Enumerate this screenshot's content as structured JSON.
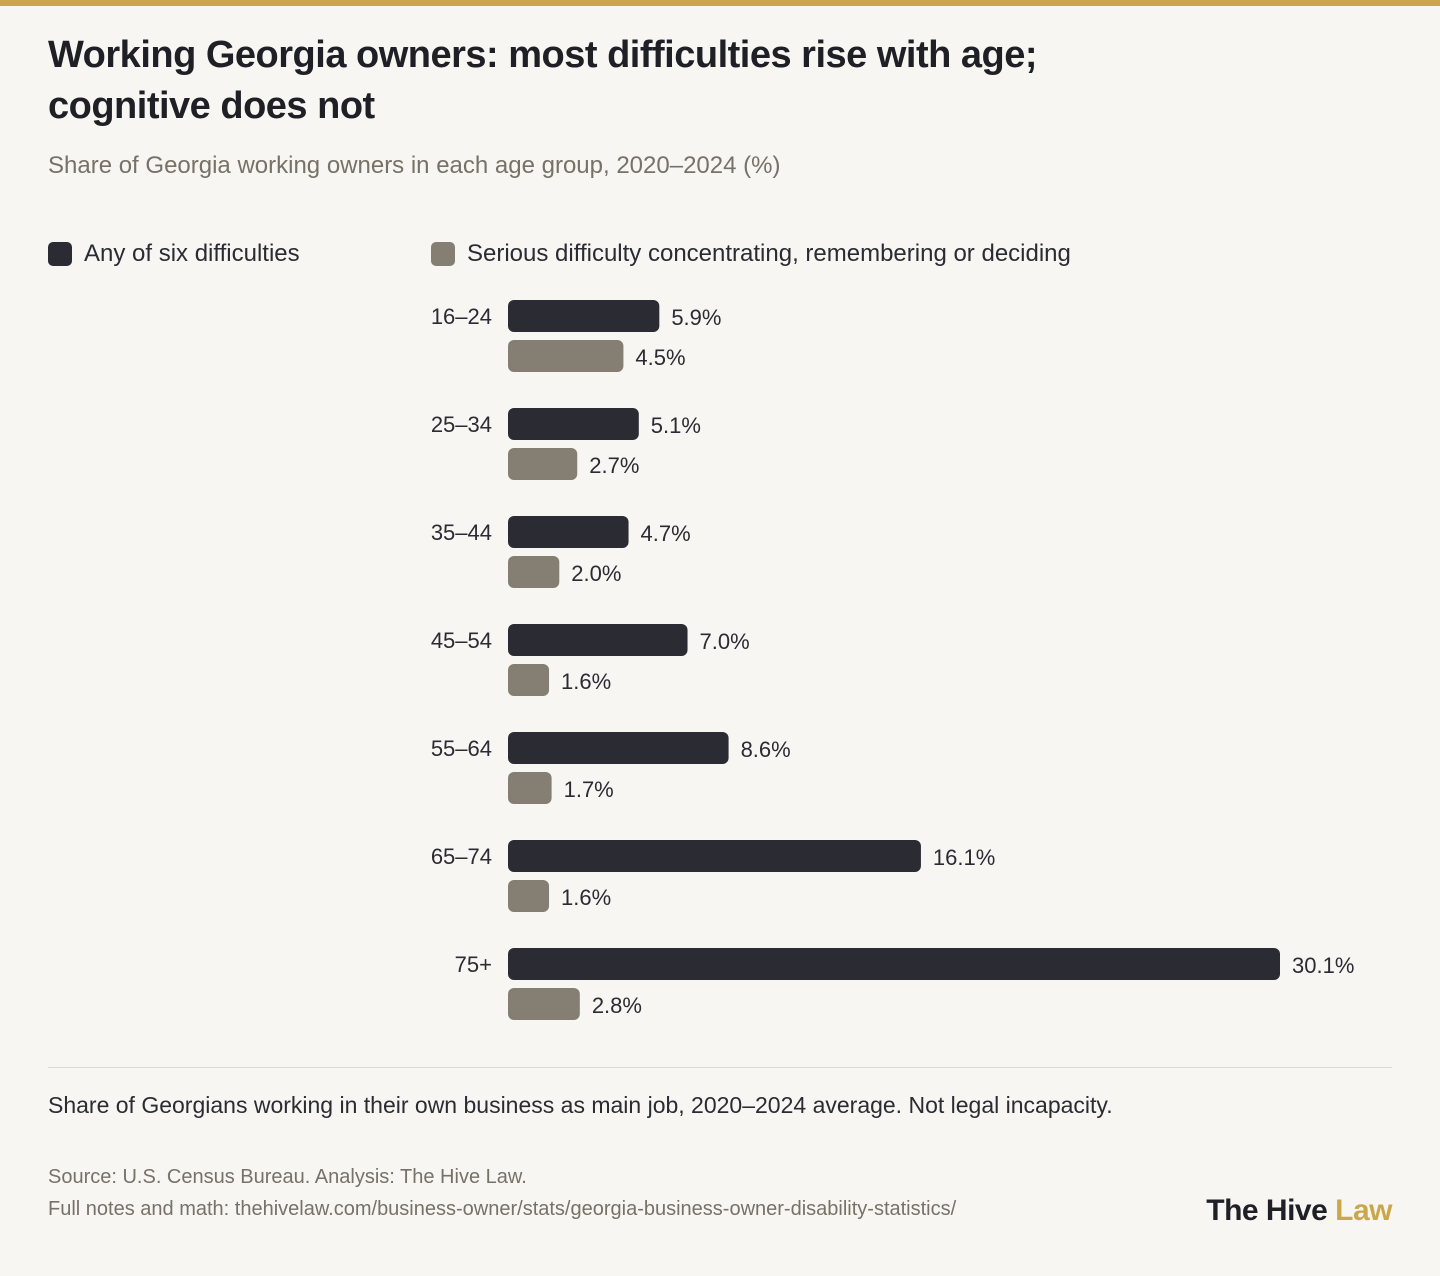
{
  "colors": {
    "accent": "#c9a84c",
    "series_dark": "#2b2b33",
    "series_taupe": "#857e72",
    "background": "#f7f6f2"
  },
  "title": "Working Georgia owners: most difficulties rise with age; cognitive does not",
  "subtitle": "Share of Georgia working owners in each age group, 2020–2024 (%)",
  "legend": {
    "items": [
      {
        "label": "Any of six difficulties",
        "color": "#2b2b33"
      },
      {
        "label": "Serious difficulty concentrating, remembering or deciding",
        "color": "#857e72"
      }
    ]
  },
  "chart_data": {
    "type": "bar",
    "orientation": "horizontal",
    "categories": [
      "16–24",
      "25–34",
      "35–44",
      "45–54",
      "55–64",
      "65–74",
      "75+"
    ],
    "series": [
      {
        "name": "Any of six difficulties",
        "color": "#2b2b33",
        "values": [
          5.9,
          5.1,
          4.7,
          7.0,
          8.6,
          16.1,
          30.1
        ],
        "labels": [
          "5.9%",
          "5.1%",
          "4.7%",
          "7.0%",
          "8.6%",
          "16.1%",
          "30.1%"
        ]
      },
      {
        "name": "Serious difficulty concentrating, remembering or deciding",
        "color": "#857e72",
        "values": [
          4.5,
          2.7,
          2.0,
          1.6,
          1.7,
          1.6,
          2.8
        ],
        "labels": [
          "4.5%",
          "2.7%",
          "2.0%",
          "1.6%",
          "1.7%",
          "1.6%",
          "2.8%"
        ]
      }
    ],
    "xlim": [
      0,
      30.1
    ],
    "grid": false,
    "legend_position": "top-left"
  },
  "footer": {
    "note": "Share of Georgians working in their own business as main job, 2020–2024 average. Not legal incapacity.",
    "source": "Source: U.S. Census Bureau. Analysis: The Hive Law.",
    "notes_link": "Full notes and math: thehivelaw.com/business-owner/stats/georgia-business-owner-disability-statistics/",
    "brand_primary": "The Hive",
    "brand_secondary": "Law"
  }
}
